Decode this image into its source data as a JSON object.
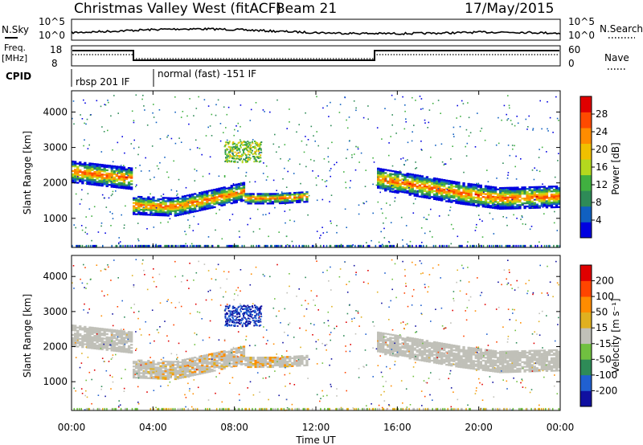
{
  "header": {
    "station": "Christmas Valley West (fitACF)",
    "beam": "Beam 21",
    "date": "17/May/2015"
  },
  "top_panels": {
    "nsky_label": "N.Sky",
    "nsearch_label": "N.Search",
    "nsky_ticks": [
      "10^5",
      "10^0"
    ],
    "freq_label_1": "Freq.",
    "freq_label_2": "[MHz]",
    "freq_ticks": [
      "18",
      "8"
    ],
    "nave_label": "Nave",
    "nave_ticks": [
      "60",
      "0"
    ],
    "cpid_label": "CPID",
    "cpid_segments": [
      {
        "label": "rbsp 201 IF",
        "start_hour": 0
      },
      {
        "label": "normal (fast) -151 IF",
        "start_hour": 3.5
      }
    ]
  },
  "colors": {
    "power": [
      "#0000e0",
      "#1060c0",
      "#2e8b57",
      "#40b040",
      "#b4d81e",
      "#f0c000",
      "#ff8c00",
      "#ff4a00",
      "#e00000"
    ],
    "velocity": [
      "#1010a0",
      "#2060d0",
      "#2e8b57",
      "#70c040",
      "#c0c0b8",
      "#e0b020",
      "#ff8c00",
      "#ff4500",
      "#e00000"
    ],
    "scatter": "#c0c0b8"
  },
  "chart_data": [
    {
      "type": "heatmap",
      "name": "power-panel",
      "ylabel": "Slant Range [km]",
      "xlim": [
        0,
        24
      ],
      "ylim": [
        180,
        4600
      ],
      "yticks": [
        "4000",
        "3000",
        "2000",
        "1000"
      ],
      "yticks_values": [
        4000,
        3000,
        2000,
        1000
      ],
      "colorbar_label": "Power [dB]",
      "colorbar_ticks": [
        "28",
        "24",
        "20",
        "16",
        "12",
        "8",
        "4"
      ],
      "colorbar_range": [
        0,
        32
      ],
      "bands": [
        {
          "x": [
            0.0,
            1.5,
            3.0
          ],
          "y": [
            2300,
            2200,
            2100
          ],
          "w": 300
        },
        {
          "x": [
            3.0,
            5.0,
            7.0,
            8.5
          ],
          "y": [
            1350,
            1300,
            1550,
            1750
          ],
          "w": 250
        },
        {
          "x": [
            8.5,
            10.0,
            11.5
          ],
          "y": [
            1550,
            1550,
            1600
          ],
          "w": 150
        },
        {
          "x": [
            15.0,
            17.0,
            19.0,
            21.0,
            24.0
          ],
          "y": [
            2100,
            1900,
            1700,
            1550,
            1600
          ],
          "w": 300
        }
      ]
    },
    {
      "type": "heatmap",
      "name": "velocity-panel",
      "ylabel": "Slant Range [km]",
      "xlabel": "Time UT",
      "xlim": [
        0,
        24
      ],
      "ylim": [
        180,
        4600
      ],
      "xticks": [
        "00:00",
        "04:00",
        "08:00",
        "12:00",
        "16:00",
        "20:00",
        "00:00"
      ],
      "xticks_values": [
        0,
        4,
        8,
        12,
        16,
        20,
        24
      ],
      "yticks": [
        "4000",
        "3000",
        "2000",
        "1000"
      ],
      "yticks_values": [
        4000,
        3000,
        2000,
        1000
      ],
      "colorbar_label": "Velocity [m s⁻¹]",
      "colorbar_ticks": [
        "200",
        "100",
        "50",
        "15",
        "-15",
        "-50",
        "-100",
        "-200"
      ],
      "colorbar_range": [
        -250,
        250
      ]
    }
  ]
}
